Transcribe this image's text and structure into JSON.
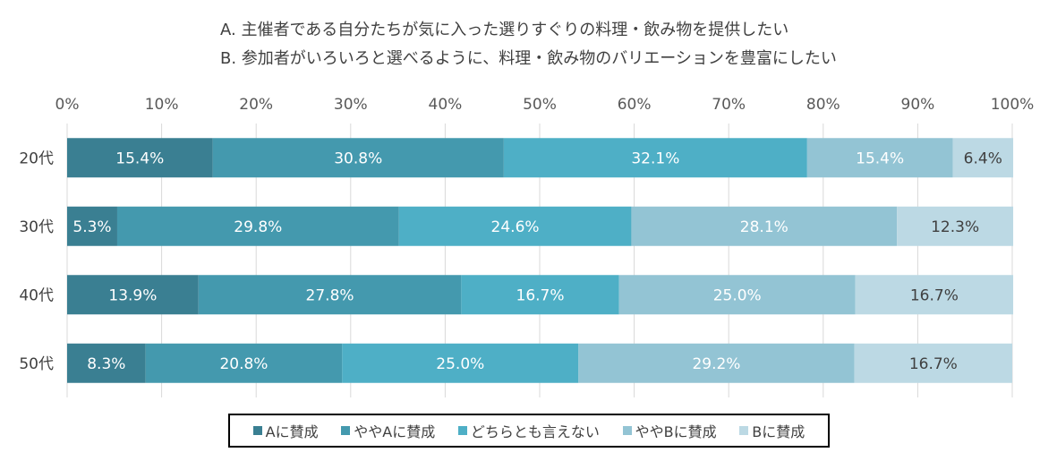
{
  "chart_data": {
    "type": "bar",
    "orientation": "horizontal",
    "stacked": true,
    "percent_stacked": true,
    "header_lines": [
      "A. 主催者である自分たちが気に入った選りすぐりの料理・飲み物を提供したい",
      "B. 参加者がいろいろと選べるように、料理・飲み物のバリエーションを豊富にしたい"
    ],
    "categories": [
      "20代",
      "30代",
      "40代",
      "50代"
    ],
    "series": [
      {
        "name": "Aに賛成",
        "values": [
          15.4,
          5.3,
          13.9,
          8.3
        ],
        "color": "#3a7f92"
      },
      {
        "name": "ややAに賛成",
        "values": [
          30.8,
          29.8,
          27.8,
          20.8
        ],
        "color": "#4499ae"
      },
      {
        "name": "どちらとも言えない",
        "values": [
          32.1,
          24.6,
          16.7,
          25.0
        ],
        "color": "#4eafc6"
      },
      {
        "name": "ややBに賛成",
        "values": [
          15.4,
          28.1,
          25.0,
          29.2
        ],
        "color": "#93c4d4"
      },
      {
        "name": "Bに賛成",
        "values": [
          6.4,
          12.3,
          16.7,
          16.7
        ],
        "color": "#bcd9e4"
      }
    ],
    "data_labels": [
      [
        "15.4%",
        "30.8%",
        "32.1%",
        "15.4%",
        "6.4%"
      ],
      [
        "5.3%",
        "29.8%",
        "24.6%",
        "28.1%",
        "12.3%"
      ],
      [
        "13.9%",
        "27.8%",
        "16.7%",
        "25.0%",
        "16.7%"
      ],
      [
        "8.3%",
        "20.8%",
        "25.0%",
        "29.2%",
        "16.7%"
      ]
    ],
    "label_colors": [
      "#ffffff",
      "#ffffff",
      "#ffffff",
      "#ffffff",
      "#404040"
    ],
    "x_ticks": [
      "0%",
      "10%",
      "20%",
      "30%",
      "40%",
      "50%",
      "60%",
      "70%",
      "80%",
      "90%",
      "100%"
    ],
    "xlim": [
      0,
      100
    ],
    "xaxis_position": "top",
    "grid": true,
    "legend_position": "bottom",
    "title": "",
    "xlabel": "",
    "ylabel": ""
  }
}
